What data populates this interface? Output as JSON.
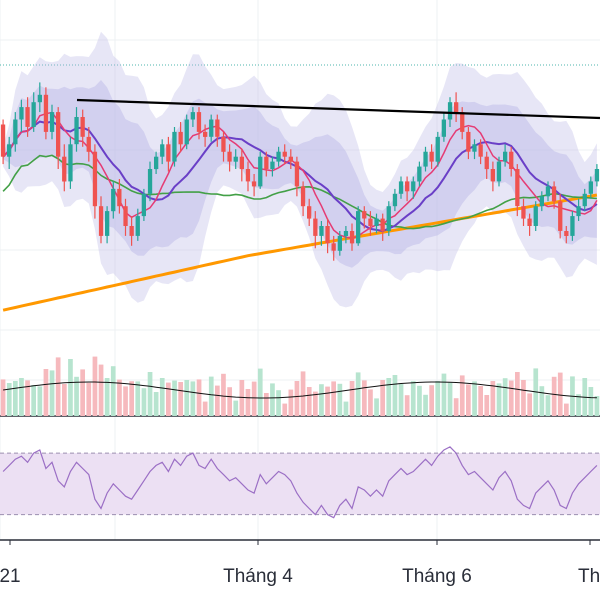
{
  "chart_data": {
    "type": "candlestick",
    "time_axis": {
      "tick_labels": [
        "21",
        "Tháng 4",
        "Tháng 6",
        "Th"
      ]
    },
    "colors": {
      "up": "#26a69a",
      "down": "#ef5350",
      "bollinger_fill": "#b9b6e6",
      "ma_purple": "#6a3fc7",
      "ma_pink": "#e53b74",
      "ma_green": "#43a047",
      "ma_orange": "#ff9800",
      "trendline": "#000000",
      "rsi_line": "#9b6fc5",
      "rsi_band": "#ece0f3",
      "grid": "#eef0f3",
      "dotted_level": "#4db6ac"
    },
    "price_pane": {
      "candles": [
        [
          163,
          150,
          165,
          147
        ],
        [
          150,
          155,
          158,
          145
        ],
        [
          155,
          165,
          168,
          152
        ],
        [
          165,
          170,
          173,
          160
        ],
        [
          170,
          162,
          174,
          158
        ],
        [
          162,
          172,
          176,
          160
        ],
        [
          172,
          175,
          180,
          168
        ],
        [
          175,
          160,
          178,
          157
        ],
        [
          160,
          168,
          171,
          157
        ],
        [
          168,
          150,
          170,
          145
        ],
        [
          150,
          140,
          155,
          136
        ],
        [
          140,
          155,
          158,
          137
        ],
        [
          155,
          166,
          170,
          152
        ],
        [
          166,
          158,
          169,
          154
        ],
        [
          158,
          152,
          162,
          148
        ],
        [
          152,
          130,
          155,
          125
        ],
        [
          130,
          118,
          134,
          115
        ],
        [
          118,
          128,
          130,
          115
        ],
        [
          128,
          137,
          140,
          125
        ],
        [
          137,
          130,
          141,
          127
        ],
        [
          130,
          122,
          133,
          118
        ],
        [
          122,
          118,
          126,
          114
        ],
        [
          118,
          126,
          129,
          116
        ],
        [
          126,
          135,
          137,
          124
        ],
        [
          135,
          145,
          148,
          132
        ],
        [
          145,
          150,
          152,
          143
        ],
        [
          150,
          155,
          157,
          147
        ],
        [
          155,
          148,
          158,
          144
        ],
        [
          148,
          160,
          162,
          146
        ],
        [
          160,
          155,
          164,
          152
        ],
        [
          155,
          165,
          167,
          153
        ],
        [
          165,
          168,
          170,
          162
        ],
        [
          168,
          160,
          170,
          157
        ],
        [
          160,
          158,
          163,
          154
        ],
        [
          158,
          165,
          167,
          156
        ],
        [
          165,
          158,
          167,
          154
        ],
        [
          158,
          152,
          160,
          148
        ],
        [
          152,
          148,
          155,
          144
        ],
        [
          148,
          150,
          153,
          145
        ],
        [
          150,
          145,
          153,
          140
        ],
        [
          145,
          140,
          148,
          136
        ],
        [
          140,
          138,
          143,
          134
        ],
        [
          138,
          150,
          152,
          137
        ],
        [
          150,
          145,
          152,
          142
        ],
        [
          145,
          148,
          150,
          142
        ],
        [
          148,
          152,
          154,
          146
        ],
        [
          152,
          150,
          155,
          147
        ],
        [
          150,
          148,
          153,
          145
        ],
        [
          148,
          138,
          150,
          134
        ],
        [
          138,
          130,
          140,
          126
        ],
        [
          130,
          125,
          133,
          122
        ],
        [
          125,
          118,
          128,
          113
        ],
        [
          118,
          122,
          124,
          114
        ],
        [
          122,
          115,
          125,
          111
        ],
        [
          115,
          112,
          118,
          108
        ],
        [
          112,
          118,
          120,
          110
        ],
        [
          118,
          120,
          122,
          115
        ],
        [
          120,
          115,
          123,
          112
        ],
        [
          115,
          128,
          130,
          114
        ],
        [
          128,
          125,
          130,
          121
        ],
        [
          125,
          122,
          128,
          118
        ],
        [
          122,
          125,
          127,
          119
        ],
        [
          125,
          120,
          127,
          116
        ],
        [
          120,
          130,
          132,
          118
        ],
        [
          130,
          135,
          137,
          128
        ],
        [
          135,
          140,
          142,
          133
        ],
        [
          140,
          136,
          142,
          132
        ],
        [
          136,
          140,
          142,
          133
        ],
        [
          140,
          146,
          148,
          138
        ],
        [
          146,
          152,
          154,
          144
        ],
        [
          152,
          148,
          155,
          145
        ],
        [
          148,
          158,
          160,
          146
        ],
        [
          158,
          165,
          168,
          156
        ],
        [
          165,
          172,
          174,
          162
        ],
        [
          172,
          168,
          176,
          164
        ],
        [
          168,
          160,
          170,
          157
        ],
        [
          160,
          152,
          162,
          149
        ],
        [
          152,
          155,
          157,
          149
        ],
        [
          155,
          150,
          157,
          147
        ],
        [
          150,
          145,
          152,
          141
        ],
        [
          145,
          140,
          148,
          136
        ],
        [
          140,
          148,
          150,
          138
        ],
        [
          148,
          152,
          155,
          146
        ],
        [
          152,
          145,
          154,
          142
        ],
        [
          145,
          130,
          147,
          126
        ],
        [
          130,
          125,
          133,
          122
        ],
        [
          125,
          122,
          127,
          118
        ],
        [
          122,
          130,
          132,
          120
        ],
        [
          130,
          134,
          136,
          128
        ],
        [
          134,
          138,
          140,
          132
        ],
        [
          138,
          132,
          140,
          129
        ],
        [
          132,
          120,
          135,
          117
        ],
        [
          120,
          118,
          122,
          115
        ],
        [
          118,
          126,
          128,
          116
        ],
        [
          126,
          130,
          133,
          124
        ],
        [
          130,
          135,
          137,
          128
        ],
        [
          135,
          140,
          142,
          133
        ],
        [
          140,
          145,
          147,
          138
        ]
      ]
    },
    "rsi_pane": {
      "levels": [
        70,
        30
      ],
      "values": [
        58,
        62,
        66,
        68,
        64,
        70,
        72,
        60,
        64,
        52,
        48,
        58,
        64,
        60,
        56,
        40,
        34,
        44,
        50,
        46,
        42,
        40,
        46,
        52,
        58,
        62,
        64,
        58,
        66,
        62,
        68,
        70,
        62,
        60,
        66,
        60,
        56,
        52,
        54,
        50,
        46,
        44,
        56,
        50,
        54,
        58,
        56,
        52,
        44,
        38,
        34,
        30,
        36,
        30,
        28,
        36,
        40,
        34,
        48,
        46,
        42,
        46,
        42,
        52,
        56,
        60,
        56,
        58,
        62,
        66,
        62,
        68,
        72,
        74,
        70,
        62,
        56,
        58,
        54,
        50,
        46,
        54,
        58,
        52,
        40,
        36,
        34,
        44,
        48,
        52,
        46,
        36,
        34,
        44,
        50,
        54,
        58,
        62
      ]
    }
  }
}
